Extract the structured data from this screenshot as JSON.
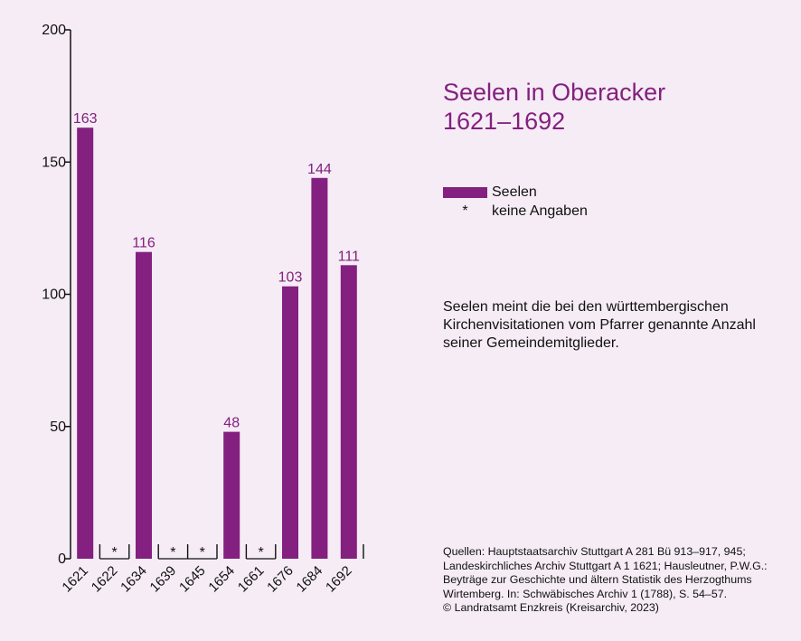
{
  "chart_data": {
    "type": "bar",
    "title": "Seelen in Oberacker 1621–1692",
    "categories": [
      "1621",
      "1622",
      "1634",
      "1639",
      "1645",
      "1654",
      "1661",
      "1676",
      "1684",
      "1692"
    ],
    "series": [
      {
        "name": "Seelen",
        "values": [
          163,
          null,
          116,
          null,
          null,
          48,
          null,
          103,
          144,
          111
        ]
      }
    ],
    "data_labels": [
      "163",
      "*",
      "116",
      "*",
      "*",
      "48",
      "*",
      "103",
      "144",
      "111"
    ],
    "missing_marker": "*",
    "ylim": [
      0,
      200
    ],
    "yticks": [
      "0",
      "50",
      "100",
      "150",
      "200"
    ],
    "xlabel": "",
    "ylabel": "",
    "grid": false,
    "legend_position": "right",
    "bar_color": "#84207f",
    "axis_color": "#111111"
  },
  "title_lines": [
    "Seelen in Oberacker",
    "1621–1692"
  ],
  "legend": {
    "bar_label": "Seelen",
    "missing_symbol": "*",
    "missing_label": "keine Angaben"
  },
  "note_text": "Seelen meint die bei den württembergischen Kirchenvisitationen vom Pfarrer genannte Anzahl seiner Gemeindemitglieder.",
  "sources_lines": [
    "Quellen: Hauptstaatsarchiv Stuttgart A 281 Bü 913–917, 945;",
    "Landeskirchliches Archiv Stuttgart A 1 1621; Hausleutner, P.W.G.:",
    "Beyträge zur Geschichte und ältern Statistik des Herzogthums",
    "Wirtemberg. In: Schwäbisches Archiv 1 (1788), S. 54–57.",
    "© Landratsamt Enzkreis (Kreisarchiv, 2023)"
  ]
}
